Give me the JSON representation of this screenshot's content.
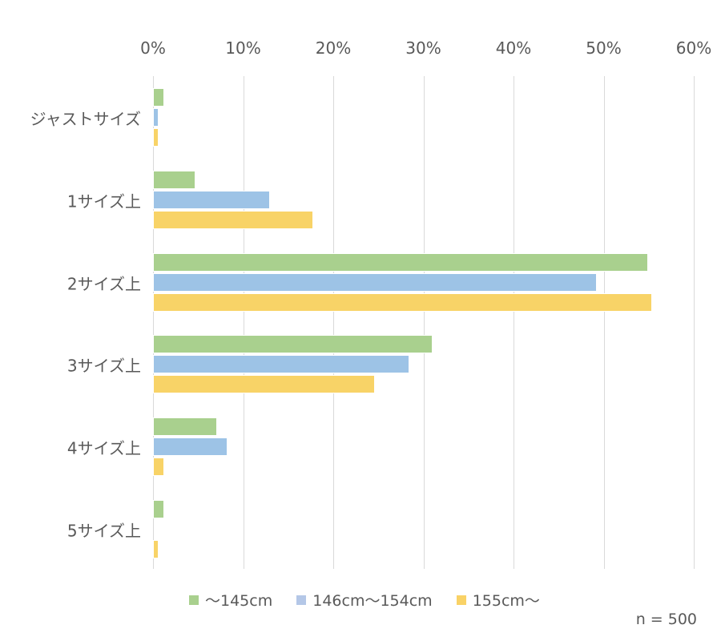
{
  "chart_data": {
    "type": "bar",
    "orientation": "horizontal",
    "title": "",
    "xlabel": "",
    "ylabel": "",
    "xlim": [
      0,
      60
    ],
    "x_ticks": [
      "0%",
      "10%",
      "20%",
      "30%",
      "40%",
      "50%",
      "60%"
    ],
    "x_tick_values": [
      0,
      10,
      20,
      30,
      40,
      50,
      60
    ],
    "axis_position": "top",
    "grid": true,
    "categories": [
      "ジャストサイズ",
      "1サイズ上",
      "2サイズ上",
      "3サイズ上",
      "4サイズ上",
      "5サイズ上"
    ],
    "series": [
      {
        "name": "～145cm",
        "color": "#a9d08e",
        "values": [
          1.2,
          4.7,
          54.9,
          31.0,
          7.1,
          1.2
        ]
      },
      {
        "name": "146cm～154cm",
        "color": "#9dc3e6",
        "legend_color": "#b4c7e7",
        "values": [
          0.6,
          13.0,
          49.2,
          28.4,
          8.3,
          0
        ]
      },
      {
        "name": "155cm～",
        "color": "#ffd966",
        "values": [
          0.6,
          17.8,
          55.4,
          24.6,
          1.2,
          0.6
        ]
      }
    ],
    "legend_position": "bottom",
    "annotation": "n = 500"
  },
  "legend": {
    "items": [
      {
        "label": "～145cm",
        "color": "#a9d08e"
      },
      {
        "label": "146cm～154cm",
        "color": "#b4c7e7"
      },
      {
        "label": "155cm～",
        "color": "#f9d266"
      }
    ]
  },
  "note": "n = 500"
}
